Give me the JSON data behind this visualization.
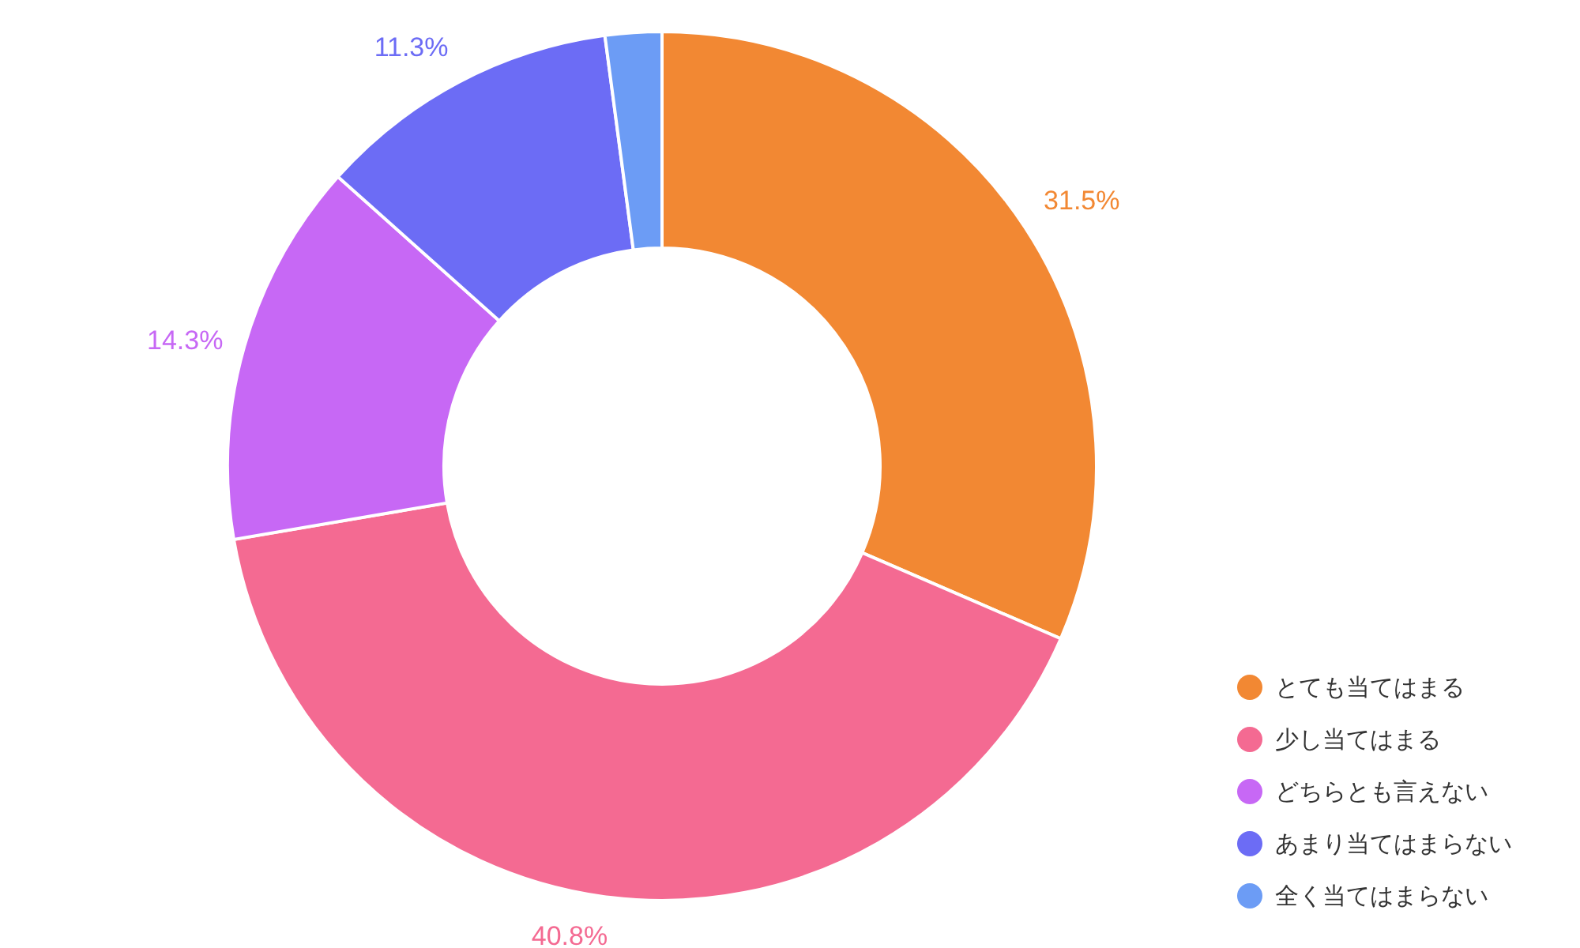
{
  "chart_data": {
    "type": "donut",
    "categories": [
      "とても当てはまる",
      "少し当てはまる",
      "どちらとも言えない",
      "あまり当てはまらない",
      "全く当てはまらない"
    ],
    "values": [
      31.5,
      40.8,
      14.3,
      11.3,
      2.1
    ],
    "value_labels": [
      "31.5%",
      "40.8%",
      "14.3%",
      "11.3%",
      null
    ],
    "colors": [
      "#f28833",
      "#f46a92",
      "#c768f5",
      "#6c6cf5",
      "#6c9cf5"
    ],
    "legend": "bottom right"
  }
}
